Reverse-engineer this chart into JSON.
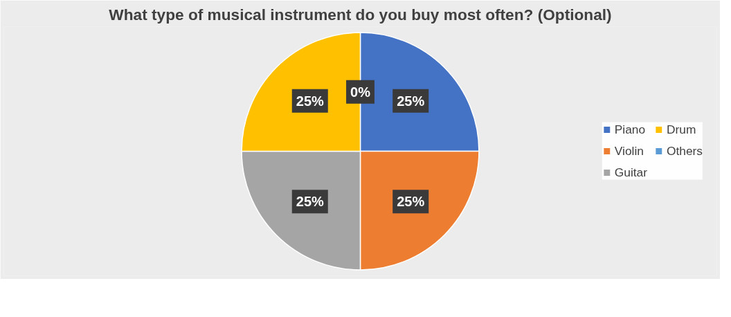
{
  "chart_data": {
    "type": "pie",
    "title": "What type of musical instrument do you buy most often? (Optional)",
    "categories": [
      "Piano",
      "Violin",
      "Guitar",
      "Drum",
      "Others"
    ],
    "values": [
      25,
      25,
      25,
      25,
      0
    ],
    "colors": [
      "#4472c4",
      "#ed7d31",
      "#a5a5a5",
      "#ffc000",
      "#5b9bd5"
    ],
    "value_labels": [
      "25%",
      "25%",
      "25%",
      "25%",
      "0%"
    ],
    "legend": "right"
  }
}
